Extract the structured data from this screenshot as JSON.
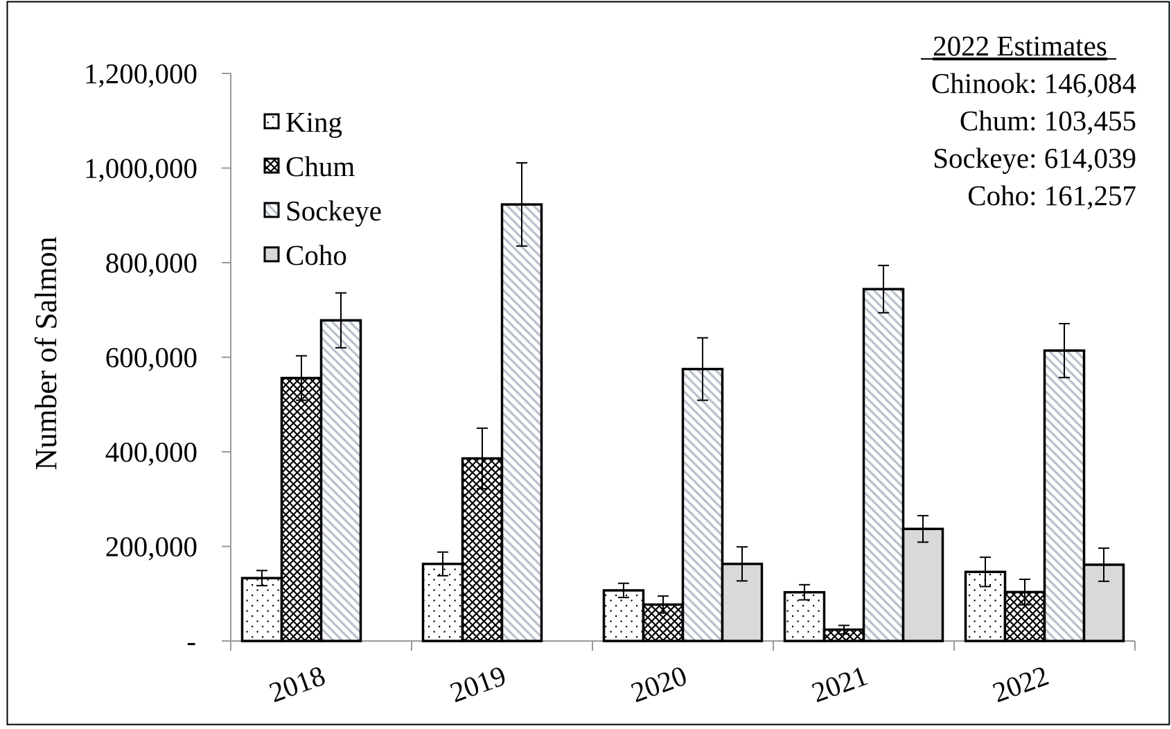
{
  "chart_data": {
    "type": "bar",
    "categories": [
      "2018",
      "2019",
      "2020",
      "2021",
      "2022"
    ],
    "ylabel": "Number of Salmon",
    "xlabel": "",
    "ylim": [
      0,
      1200000
    ],
    "yticks": [
      0,
      200000,
      400000,
      600000,
      800000,
      1000000,
      1200000
    ],
    "ytick_labels": [
      "-",
      "200,000",
      "400,000",
      "600,000",
      "800,000",
      "1,000,000",
      "1,200,000"
    ],
    "grid": false,
    "legend_position": "top-left",
    "error_bars": true,
    "series": [
      {
        "name": "King",
        "pattern": "dots",
        "fill": "#ffffff",
        "values": [
          133000,
          163000,
          107000,
          103000,
          146084
        ],
        "err": [
          16000,
          25000,
          15000,
          16000,
          31000
        ]
      },
      {
        "name": "Chum",
        "pattern": "crosshatch",
        "fill": "#ffffff",
        "values": [
          556000,
          386000,
          77000,
          24000,
          103455
        ],
        "err": [
          47000,
          64000,
          18000,
          9000,
          27000
        ]
      },
      {
        "name": "Sockeye",
        "pattern": "diagonal",
        "fill": "#ffffff",
        "values": [
          678000,
          923000,
          575000,
          744000,
          614039
        ],
        "err": [
          58000,
          88000,
          66000,
          50000,
          57000
        ]
      },
      {
        "name": "Coho",
        "pattern": "solid",
        "fill": "#d9d9d9",
        "values": [
          null,
          null,
          163000,
          237000,
          161257
        ],
        "err": [
          null,
          null,
          36000,
          28000,
          35000
        ]
      }
    ],
    "annotation": {
      "heading": "2022 Estimates",
      "lines": [
        "Chinook: 146,084",
        "Chum: 103,455",
        "Sockeye: 614,039",
        "Coho: 161,257"
      ]
    }
  }
}
